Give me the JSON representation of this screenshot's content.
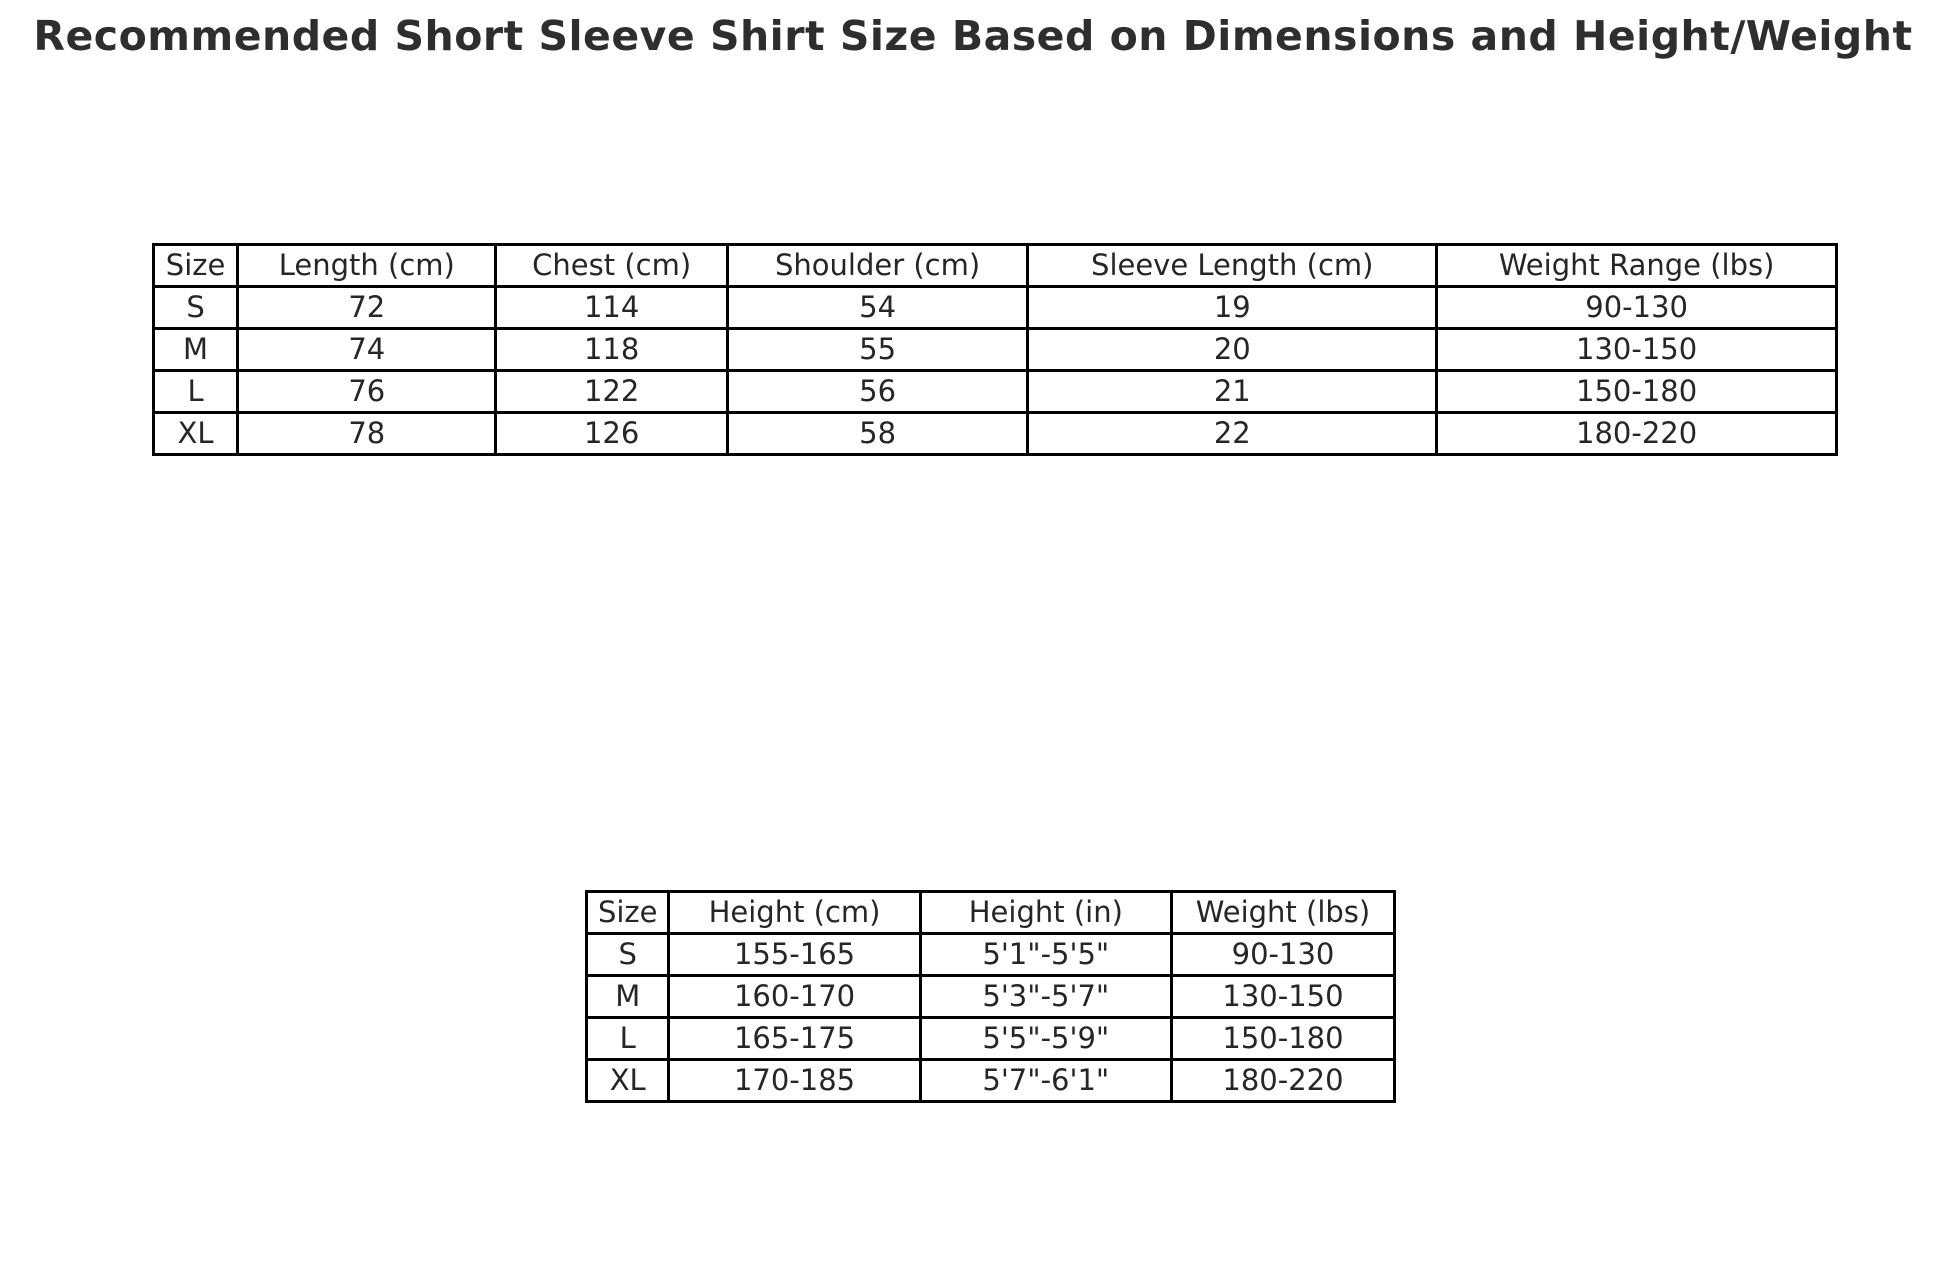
{
  "title": "Recommended Short Sleeve Shirt Size Based on Dimensions and Height/Weight",
  "colors": {
    "background": "#ffffff",
    "title_text": "#2e2e2e",
    "table_text": "#262626",
    "table_border": "#000000"
  },
  "chart_data": [
    {
      "type": "table",
      "name": "shirt-dimensions",
      "headers": [
        "Size",
        "Length (cm)",
        "Chest (cm)",
        "Shoulder (cm)",
        "Sleeve Length (cm)",
        "Weight Range (lbs)"
      ],
      "rows": [
        [
          "S",
          "72",
          "114",
          "54",
          "19",
          "90-130"
        ],
        [
          "M",
          "74",
          "118",
          "55",
          "20",
          "130-150"
        ],
        [
          "L",
          "76",
          "122",
          "56",
          "21",
          "150-180"
        ],
        [
          "XL",
          "78",
          "126",
          "58",
          "22",
          "180-220"
        ]
      ]
    },
    {
      "type": "table",
      "name": "height-weight",
      "headers": [
        "Size",
        "Height (cm)",
        "Height (in)",
        "Weight (lbs)"
      ],
      "rows": [
        [
          "S",
          "155-165",
          "5'1\"-5'5\"",
          "90-130"
        ],
        [
          "M",
          "160-170",
          "5'3\"-5'7\"",
          "130-150"
        ],
        [
          "L",
          "165-175",
          "5'5\"-5'9\"",
          "150-180"
        ],
        [
          "XL",
          "170-185",
          "5'7\"-6'1\"",
          "180-220"
        ]
      ]
    }
  ]
}
